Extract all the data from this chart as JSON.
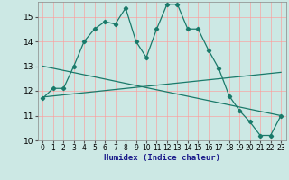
{
  "xlabel": "Humidex (Indice chaleur)",
  "bg_color": "#cce8e4",
  "line_color": "#1a7a6a",
  "grid_color": "#ff9999",
  "xlim": [
    -0.5,
    23.5
  ],
  "ylim": [
    10,
    15.6
  ],
  "yticks": [
    10,
    11,
    12,
    13,
    14,
    15
  ],
  "xticks": [
    0,
    1,
    2,
    3,
    4,
    5,
    6,
    7,
    8,
    9,
    10,
    11,
    12,
    13,
    14,
    15,
    16,
    17,
    18,
    19,
    20,
    21,
    22,
    23
  ],
  "line1_x": [
    0,
    1,
    2,
    3,
    4,
    5,
    6,
    7,
    8,
    9,
    10,
    11,
    12,
    13,
    14,
    15,
    16,
    17,
    18,
    19,
    20,
    21,
    22,
    23
  ],
  "line1_y": [
    11.7,
    12.1,
    12.1,
    13.0,
    14.0,
    14.5,
    14.8,
    14.7,
    15.35,
    14.0,
    13.35,
    14.5,
    15.5,
    15.5,
    14.5,
    14.5,
    13.65,
    12.9,
    11.8,
    11.2,
    10.75,
    10.2,
    10.2,
    11.0
  ],
  "line2_x": [
    0,
    23
  ],
  "line2_y": [
    13.0,
    11.0
  ],
  "line3_x": [
    0,
    23
  ],
  "line3_y": [
    11.75,
    12.75
  ]
}
